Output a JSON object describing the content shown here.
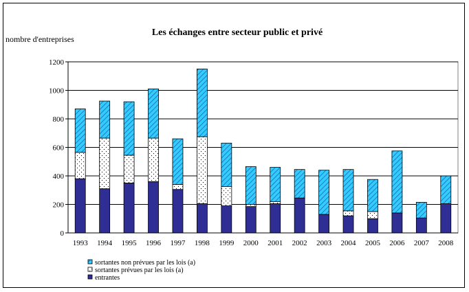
{
  "chart_data": {
    "type": "bar",
    "stacked": true,
    "title": "Les échanges entre secteur public et privé",
    "ylabel": "nombre d'entreprises",
    "xlabel": "",
    "ylim": [
      0,
      1200
    ],
    "yticks": [
      0,
      200,
      400,
      600,
      800,
      1000,
      1200
    ],
    "grid": true,
    "legend_position": "bottom-left",
    "categories": [
      "1993",
      "1994",
      "1995",
      "1996",
      "1997",
      "1998",
      "1999",
      "2000",
      "2001",
      "2002",
      "2003",
      "2004",
      "2005",
      "2006",
      "2007",
      "2008"
    ],
    "series": [
      {
        "name": "entrantes",
        "color": "#2e2e94",
        "pattern": "solid",
        "values": [
          380,
          310,
          350,
          360,
          305,
          205,
          190,
          185,
          205,
          245,
          130,
          120,
          100,
          140,
          105,
          205
        ]
      },
      {
        "name": "sortantes prévues par les lois (a)",
        "color": "#ffffff",
        "pattern": "dots",
        "values": [
          185,
          355,
          195,
          305,
          35,
          470,
          135,
          15,
          15,
          0,
          0,
          35,
          50,
          0,
          0,
          0
        ]
      },
      {
        "name": "sortantes  non prévues par les lois (a)",
        "color": "#33ccff",
        "pattern": "hatch",
        "values": [
          305,
          260,
          375,
          345,
          320,
          475,
          305,
          265,
          240,
          200,
          310,
          290,
          225,
          435,
          110,
          195
        ]
      }
    ]
  }
}
